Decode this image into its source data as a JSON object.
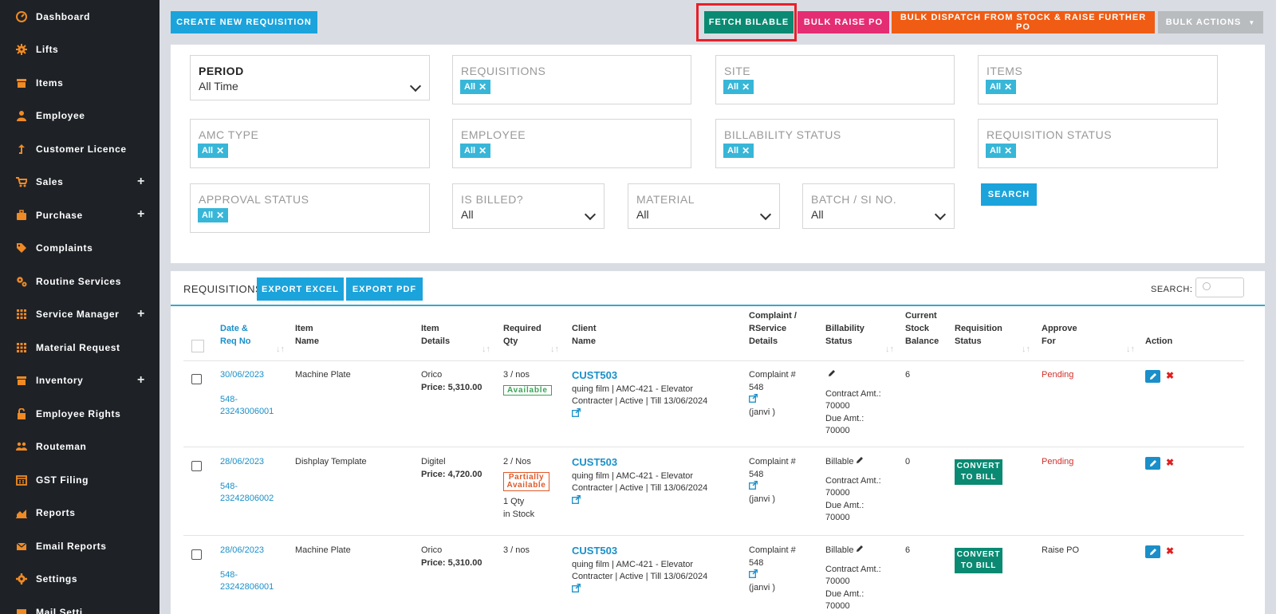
{
  "sidebar": {
    "items": [
      {
        "label": "Dashboard",
        "icon": "dashboard-icon"
      },
      {
        "label": "Lifts",
        "icon": "gear-icon"
      },
      {
        "label": "Items",
        "icon": "archive-icon"
      },
      {
        "label": "Employee",
        "icon": "user-icon"
      },
      {
        "label": "Customer Licence",
        "icon": "level-up-icon"
      },
      {
        "label": "Sales",
        "icon": "cart-icon",
        "expand": "+"
      },
      {
        "label": "Purchase",
        "icon": "briefcase-icon",
        "expand": "+"
      },
      {
        "label": "Complaints",
        "icon": "tag-icon"
      },
      {
        "label": "Routine Services",
        "icon": "gears-icon"
      },
      {
        "label": "Service Manager",
        "icon": "grid-icon",
        "expand": "+"
      },
      {
        "label": "Material Request",
        "icon": "grid-icon"
      },
      {
        "label": "Inventory",
        "icon": "archive-icon",
        "expand": "+"
      },
      {
        "label": "Employee Rights",
        "icon": "unlock-icon"
      },
      {
        "label": "Routeman",
        "icon": "users-icon"
      },
      {
        "label": "GST Filing",
        "icon": "calendar-icon"
      },
      {
        "label": "Reports",
        "icon": "area-chart-icon"
      },
      {
        "label": "Email Reports",
        "icon": "envelope-icon"
      },
      {
        "label": "Settings",
        "icon": "cog-icon"
      },
      {
        "label": "Mail Setti...",
        "icon": "mail-icon"
      }
    ]
  },
  "toolbar": {
    "create": "CREATE NEW REQUISITION",
    "fetch": "FETCH BILABLE",
    "bulk_po": "BULK RAISE PO",
    "bulk_dispatch": "BULK DISPATCH FROM STOCK & RAISE FURTHER PO",
    "bulk_actions": "BULK ACTIONS",
    "bulk_actions_caret": "▼"
  },
  "filters": {
    "period": {
      "label": "PERIOD",
      "value": "All Time"
    },
    "requisitions": {
      "label": "REQUISITIONS",
      "chip": "All"
    },
    "site": {
      "label": "SITE",
      "chip": "All"
    },
    "items": {
      "label": "ITEMS",
      "chip": "All"
    },
    "amc_type": {
      "label": "AMC TYPE",
      "chip": "All"
    },
    "employee": {
      "label": "EMPLOYEE",
      "chip": "All"
    },
    "billability_status": {
      "label": "BILLABILITY STATUS",
      "chip": "All"
    },
    "requisition_status": {
      "label": "REQUISITION STATUS",
      "chip": "All"
    },
    "approval_status": {
      "label": "APPROVAL STATUS",
      "chip": "All"
    },
    "is_billed": {
      "label": "IS BILLED?",
      "value": "All"
    },
    "material": {
      "label": "MATERIAL",
      "value": "All"
    },
    "batch": {
      "label": "BATCH / SI NO.",
      "value": "All"
    },
    "chip_close": "✕",
    "search_button": "SEARCH"
  },
  "list": {
    "title": "REQUISITIONS",
    "export_excel": "EXPORT EXCEL",
    "export_pdf": "EXPORT PDF",
    "search_label": "SEARCH:",
    "columns": {
      "date": [
        "Date &",
        "Req No"
      ],
      "item_name": [
        "Item",
        "Name"
      ],
      "item_details": [
        "Item",
        "Details"
      ],
      "required_qty": [
        "Required",
        "Qty"
      ],
      "client_name": [
        "Client",
        "Name"
      ],
      "complaint": [
        "Complaint /",
        "RService",
        "Details"
      ],
      "billability": [
        "Billability",
        "Status"
      ],
      "stock": [
        "Current",
        "Stock",
        "Balance"
      ],
      "req_status": [
        "Requisition",
        "Status"
      ],
      "approve_for": [
        "Approve",
        "For"
      ],
      "action": "Action"
    },
    "sort_icon": "↓↑",
    "rows": [
      {
        "date": "30/06/2023",
        "req_no": [
          "548-",
          "23243006001"
        ],
        "item_name": "Machine Plate",
        "item_vendor": "Orico",
        "item_price": "Price: 5,310.00",
        "qty": "3 / nos",
        "qty_badge": "Available",
        "qty_extra": [],
        "client_code": "CUST503",
        "client_lines": [
          "quing film | AMC-421 - Elevator",
          "Contracter | Active | Till 13/06/2024"
        ],
        "complaint": [
          "Complaint #",
          "548"
        ],
        "complaint_person": "(janvi )",
        "billability": "",
        "billing": [
          "Contract Amt.:",
          "70000",
          "Due Amt.:",
          "70000"
        ],
        "stock": "6",
        "convert": "",
        "approve_for": "Pending"
      },
      {
        "date": "28/06/2023",
        "req_no": [
          "548-",
          "23242806002"
        ],
        "item_name": "Dishplay Template",
        "item_vendor": "Digitel",
        "item_price": "Price: 4,720.00",
        "qty": "2 / Nos",
        "qty_badge": "Partially Available",
        "qty_extra": [
          "1 Qty",
          "in Stock"
        ],
        "client_code": "CUST503",
        "client_lines": [
          "quing film | AMC-421 - Elevator",
          "Contracter | Active | Till 13/06/2024"
        ],
        "complaint": [
          "Complaint #",
          "548"
        ],
        "complaint_person": "(janvi )",
        "billability": "Billable",
        "billing": [
          "Contract Amt.:",
          "70000",
          "Due Amt.:",
          "70000"
        ],
        "stock": "0",
        "convert": "CONVERT TO BILL",
        "approve_for": "Pending"
      },
      {
        "date": "28/06/2023",
        "req_no": [
          "548-",
          "23242806001"
        ],
        "item_name": "Machine Plate",
        "item_vendor": "Orico",
        "item_price": "Price: 5,310.00",
        "qty": "3 / nos",
        "qty_badge": "",
        "qty_extra": [],
        "client_code": "CUST503",
        "client_lines": [
          "quing film | AMC-421 - Elevator",
          "Contracter | Active | Till 13/06/2024"
        ],
        "complaint": [
          "Complaint #",
          "548"
        ],
        "complaint_person": "(janvi )",
        "billability": "Billable",
        "billing": [
          "Contract Amt.:",
          "70000",
          "Due Amt.:",
          "70000"
        ],
        "stock": "6",
        "convert": "CONVERT TO BILL",
        "approve_for": "Raise PO"
      }
    ]
  },
  "colors": {
    "sidebar_bg": "#1e2227",
    "sidebar_icon": "#f08a24",
    "primary": "#1ba3dc",
    "fetch": "#0a8a72",
    "bulk_po": "#e42d73",
    "bulk_dispatch": "#f05c13",
    "highlight": "#e81f2a"
  }
}
